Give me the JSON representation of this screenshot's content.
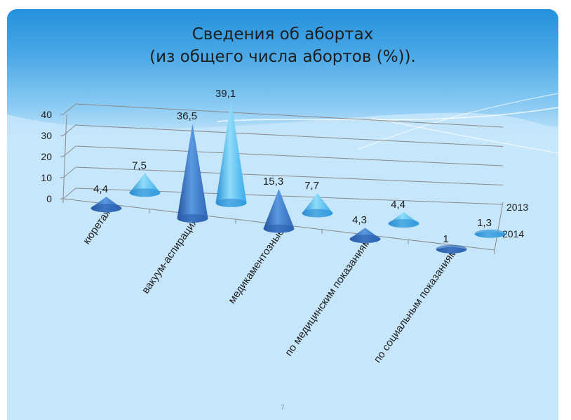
{
  "slide": {
    "title_line1": "Сведения об абортах",
    "title_line2": "(из общего числа абортов (%)).",
    "page_number": "7"
  },
  "colors": {
    "slide_background": "#c6e6fb",
    "header_gradient_top": "#2a93de",
    "header_gradient_bottom": "#c6e6fb",
    "series_2013": "#3fb4ef",
    "series_2014": "#2f6fc4",
    "text": "#1d1d1d"
  },
  "chart_data": {
    "type": "bar",
    "mark_shape": "3d-cone",
    "categories": [
      "кюретаж",
      "вакуум-аспирация",
      "медикаментозные",
      "по медицинским показаниям",
      "по социальным показаниям"
    ],
    "series": [
      {
        "name": "2014",
        "values": [
          4.4,
          36.5,
          15.3,
          4.3,
          1
        ]
      },
      {
        "name": "2013",
        "values": [
          7.5,
          39.1,
          7.7,
          4.4,
          1.3
        ]
      }
    ],
    "data_labels": {
      "2014": [
        "4,4",
        "36,5",
        "15,3",
        "4,3",
        "1"
      ],
      "2013": [
        "7,5",
        "39,1",
        "7,7",
        "4,4",
        "1,3"
      ]
    },
    "y_ticks": [
      0,
      10,
      20,
      30,
      40
    ],
    "ylim": [
      0,
      40
    ],
    "grid": true,
    "title": "",
    "xlabel": "",
    "ylabel": ""
  }
}
